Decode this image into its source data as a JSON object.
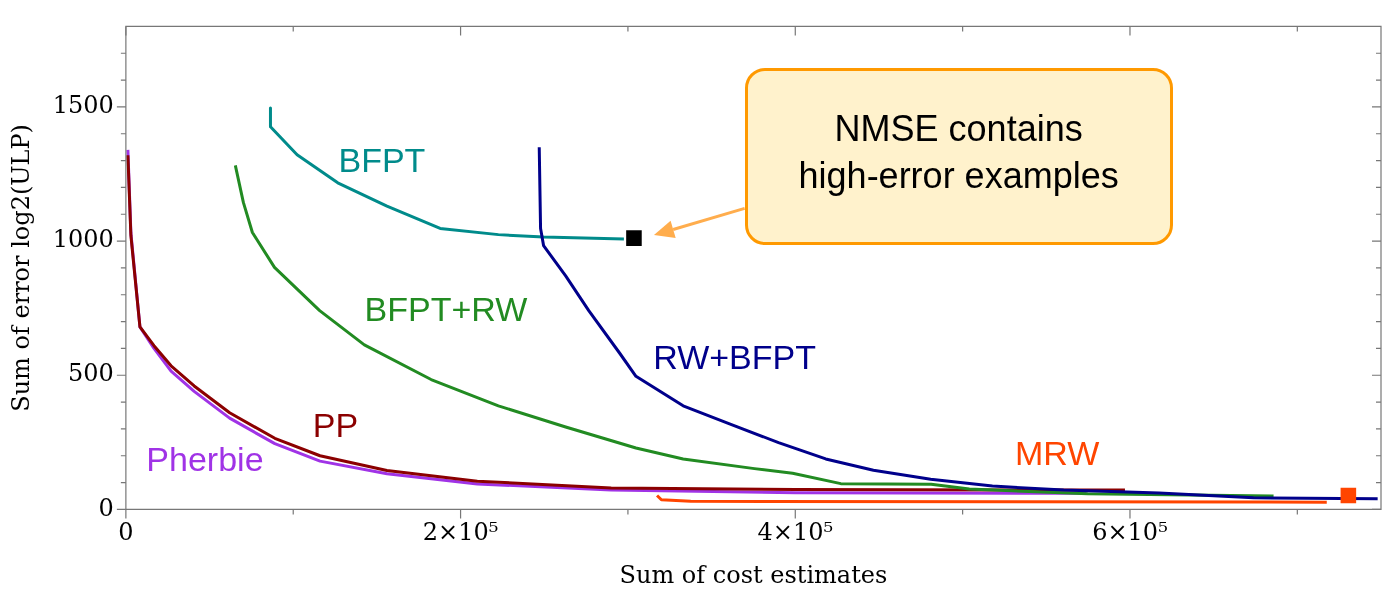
{
  "chart_data": {
    "type": "line",
    "xlabel": "Sum of cost estimates",
    "ylabel": "Sum of error log2(ULP)",
    "xlim": [
      0,
      750000
    ],
    "ylim": [
      0,
      1800
    ],
    "xticks": [
      0,
      {
        "value": 100000,
        "label": null
      },
      {
        "value": 200000,
        "label": "2×10⁵"
      },
      {
        "value": 300000,
        "label": null
      },
      {
        "value": 400000,
        "label": "4×10⁵"
      },
      {
        "value": 500000,
        "label": null
      },
      {
        "value": 600000,
        "label": "6×10⁵"
      },
      {
        "value": 700000,
        "label": null
      }
    ],
    "yticks": [
      0,
      {
        "value": 100,
        "label": null
      },
      {
        "value": 200,
        "label": null
      },
      {
        "value": 300,
        "label": null
      },
      {
        "value": 400,
        "label": null
      },
      500,
      {
        "value": 600,
        "label": null
      },
      {
        "value": 700,
        "label": null
      },
      {
        "value": 800,
        "label": null
      },
      {
        "value": 900,
        "label": null
      },
      1000,
      {
        "value": 1100,
        "label": null
      },
      {
        "value": 1200,
        "label": null
      },
      {
        "value": 1300,
        "label": null
      },
      {
        "value": 1400,
        "label": null
      },
      1500,
      {
        "value": 1600,
        "label": null
      },
      {
        "value": 1700,
        "label": null
      }
    ],
    "grid": false,
    "legend": false,
    "marker": "none",
    "line_style": "solid",
    "series": [
      {
        "name": "Pherbie",
        "color": "#a033e6",
        "x": [
          1200,
          3000,
          8400,
          16800,
          27000,
          40800,
          62000,
          89000,
          116000,
          156000,
          210000,
          290000,
          400000,
          574000
        ],
        "values": [
          1340,
          1030,
          680,
          600,
          515,
          440,
          340,
          245,
          180,
          133,
          95,
          72,
          62,
          60
        ]
      },
      {
        "name": "PP",
        "color": "#8b0000",
        "x": [
          1200,
          3000,
          8400,
          16800,
          27000,
          40800,
          62000,
          89000,
          116000,
          156000,
          210000,
          290000,
          400000,
          597000
        ],
        "values": [
          1320,
          1020,
          680,
          610,
          535,
          460,
          360,
          265,
          200,
          145,
          105,
          80,
          74,
          72
        ]
      },
      {
        "name": "BFPT",
        "color": "#008b8b",
        "x": [
          86400,
          86400,
          102300,
          126600,
          156000,
          187800,
          222600,
          249600,
          297600
        ],
        "values": [
          1496,
          1426,
          1322,
          1217,
          1130,
          1047,
          1024,
          1015,
          1008
        ]
      },
      {
        "name": "BFPT+RW",
        "color": "#228b22",
        "x": [
          65400,
          70200,
          75600,
          88800,
          115800,
          142500,
          182400,
          222600,
          262800,
          304800,
          333000,
          375600,
          398400,
          427200,
          481200,
          504000,
          574800,
          685800
        ],
        "values": [
          1282,
          1144,
          1032,
          902,
          741,
          613,
          484,
          386,
          307,
          229,
          188,
          152,
          135,
          96,
          94,
          76,
          58,
          50
        ]
      },
      {
        "name": "RW+BFPT",
        "color": "#00008b",
        "x": [
          247000,
          247800,
          249600,
          262800,
          276600,
          295200,
          304800,
          333000,
          361500,
          390000,
          418200,
          446700,
          480900,
          517800,
          560400,
          617400,
          673800,
          748000
        ],
        "values": [
          1350,
          1047,
          983,
          870,
          741,
          581,
          496,
          386,
          317,
          249,
          188,
          146,
          112,
          87,
          72,
          61,
          43,
          40
        ]
      },
      {
        "name": "MRW",
        "color": "#ff4500",
        "x": [
          317400,
          320000,
          337500,
          717600
        ],
        "values": [
          52,
          36,
          30,
          27
        ]
      },
      {
        "type": "scatter",
        "marker": "square",
        "color": "#000000",
        "x": [
          303600
        ],
        "values": [
          1011
        ]
      },
      {
        "type": "scatter",
        "marker": "square",
        "color": "#ff4500",
        "x": [
          730500
        ],
        "values": [
          52
        ]
      }
    ],
    "annotations": [
      "NMSE contains\nhigh-error examples"
    ]
  }
}
